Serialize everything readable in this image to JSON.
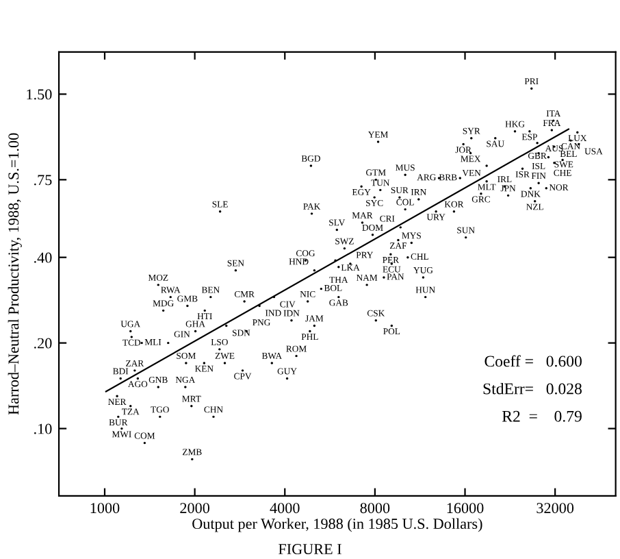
{
  "chart_data": {
    "type": "scatter",
    "xlabel": "Output per Worker, 1988 (in 1985 U.S. Dollars)",
    "ylabel": "Harrod–Neutral Productivity, 1988, U.S.=1.00",
    "log": "xy",
    "grid": false,
    "legend": false,
    "xlim": [
      703,
      51000
    ],
    "ylim": [
      0.058,
      2.11
    ],
    "xticks": [
      1000,
      2000,
      4000,
      8000,
      16000,
      32000
    ],
    "yticks": [
      {
        "value": 0.1,
        "label": ".10"
      },
      {
        "value": 0.2,
        "label": ".20"
      },
      {
        "value": 0.4,
        "label": ".40"
      },
      {
        "value": 0.75,
        "label": ".75"
      },
      {
        "value": 1.5,
        "label": "1.50"
      }
    ],
    "series": [
      {
        "color": "#000000",
        "marker": "circle",
        "x": [
          26700,
          31600,
          31200,
          38000,
          36100,
          38400,
          23500,
          26300,
          20200,
          16800,
          15800,
          16700,
          27900,
          31800,
          28200,
          30400,
          33900,
          31800,
          18900,
          24900,
          15400,
          18900,
          13100,
          10100,
          8060,
          7210,
          8340,
          7970,
          9670,
          11200,
          21700,
          22300,
          28200,
          26500,
          29900,
          27400,
          18100,
          10100,
          12800,
          14700,
          16100,
          8200,
          4890,
          2430,
          4920,
          5970,
          7260,
          9740,
          7860,
          9570,
          10600,
          6330,
          9030,
          10300,
          9100,
          4690,
          5020,
          5900,
          6620,
          6050,
          2740,
          1510,
          1660,
          1570,
          1890,
          2160,
          2260,
          2930,
          3290,
          3680,
          4770,
          5290,
          6050,
          7520,
          8570,
          11600,
          11800,
          8060,
          9100,
          4210,
          5020,
          4850,
          1220,
          1230,
          1330,
          1630,
          2010,
          2550,
          2980,
          2420,
          1870,
          2150,
          2520,
          2890,
          3620,
          4370,
          4070,
          1260,
          1130,
          1290,
          1510,
          1860,
          1100,
          1220,
          1950,
          1530,
          1110,
          1140,
          2310,
          1360,
          1960
        ],
        "values": [
          1.57,
          1.21,
          1.12,
          1.1,
          1.03,
          1.0,
          1.11,
          1.11,
          1.05,
          1.05,
          1.0,
          0.93,
          1.01,
          0.98,
          0.93,
          0.9,
          0.88,
          0.86,
          0.84,
          0.82,
          0.76,
          0.74,
          0.76,
          0.78,
          0.75,
          0.71,
          0.69,
          0.65,
          0.65,
          0.64,
          0.71,
          0.66,
          0.73,
          0.7,
          0.7,
          0.63,
          0.67,
          0.59,
          0.58,
          0.58,
          0.47,
          1.02,
          0.84,
          0.58,
          0.57,
          0.5,
          0.53,
          0.51,
          0.48,
          0.46,
          0.45,
          0.43,
          0.41,
          0.4,
          0.38,
          0.39,
          0.36,
          0.39,
          0.38,
          0.37,
          0.36,
          0.32,
          0.29,
          0.26,
          0.27,
          0.26,
          0.29,
          0.28,
          0.27,
          0.29,
          0.28,
          0.31,
          0.29,
          0.32,
          0.34,
          0.34,
          0.29,
          0.24,
          0.23,
          0.24,
          0.23,
          0.22,
          0.22,
          0.21,
          0.2,
          0.2,
          0.22,
          0.23,
          0.22,
          0.19,
          0.17,
          0.17,
          0.17,
          0.16,
          0.17,
          0.18,
          0.15,
          0.16,
          0.15,
          0.15,
          0.14,
          0.14,
          0.13,
          0.12,
          0.12,
          0.11,
          0.11,
          0.1,
          0.11,
          0.089,
          0.078
        ],
        "value_labels": [
          "PRI",
          "ITA",
          "FRA",
          "LUX",
          "CAN",
          "USA",
          "HKG",
          "ESP",
          "SAU",
          "SYR",
          "JOR",
          "MEX",
          "GBR",
          "BEL",
          "ISL",
          "SWE",
          "CHE",
          "AUS",
          "VEN",
          "ISR",
          "BRB",
          "MLT",
          "ARG",
          "MUS",
          "GTM",
          "EGY",
          "TUN",
          "SYC",
          "SUR",
          "IRN",
          "IRL",
          "JPN",
          "FIN",
          "DNK",
          "NOR",
          "NZL",
          "GRC",
          "COL",
          "URY",
          "KOR",
          "SUN",
          "YEM",
          "BGD",
          "SLE",
          "PAK",
          "SLV",
          "MAR",
          "CRI",
          "DOM",
          "ZAF",
          "MYS",
          "SWZ",
          "PER",
          "CHL",
          "ECU",
          "COG",
          "HND",
          "LKA",
          "PRY",
          "THA",
          "SEN",
          "MOZ",
          "RWA",
          "MDG",
          "GMB",
          "HTI",
          "BEN",
          "CMR",
          "IND",
          "CIV",
          "NIC",
          "BOL",
          "GAB",
          "NAM",
          "PAN",
          "YUG",
          "HUN",
          "CSK",
          "POL",
          "IDN",
          "JAM",
          "PHL",
          "UGA",
          "TCD",
          "MLI",
          "GIN",
          "GHA",
          "SDN",
          "PNG",
          "LSO",
          "SOM",
          "KEN",
          "ZWE",
          "CPV",
          "BWA",
          "ROM",
          "GUY",
          "ZAR",
          "BDI",
          "AGO",
          "GNB",
          "NGA",
          "NER",
          "TZA",
          "MRT",
          "TGO",
          "BUR",
          "MWI",
          "CHN",
          "COM",
          "ZMB"
        ]
      },
      {
        "type": "line",
        "color": "#000000",
        "line_style": "solid",
        "x": [
          1010,
          35500
        ],
        "values": [
          0.135,
          1.13
        ]
      }
    ],
    "annotations": [
      "Coeff =   0.600",
      "StdErr=   0.028",
      "R2  =    0.79",
      "FIGURE I"
    ]
  }
}
